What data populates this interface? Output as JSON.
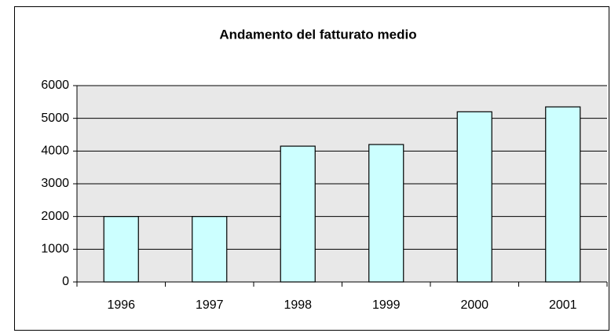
{
  "chart_data": {
    "type": "bar",
    "title": "Andamento del fatturato medio",
    "categories": [
      "1996",
      "1997",
      "1998",
      "1999",
      "2000",
      "2001"
    ],
    "values": [
      2000,
      2000,
      4150,
      4200,
      5200,
      5350
    ],
    "color": "#ccffff",
    "ylim": [
      0,
      6000
    ],
    "yticks": [
      0,
      1000,
      2000,
      3000,
      4000,
      5000,
      6000
    ],
    "grid": true
  }
}
